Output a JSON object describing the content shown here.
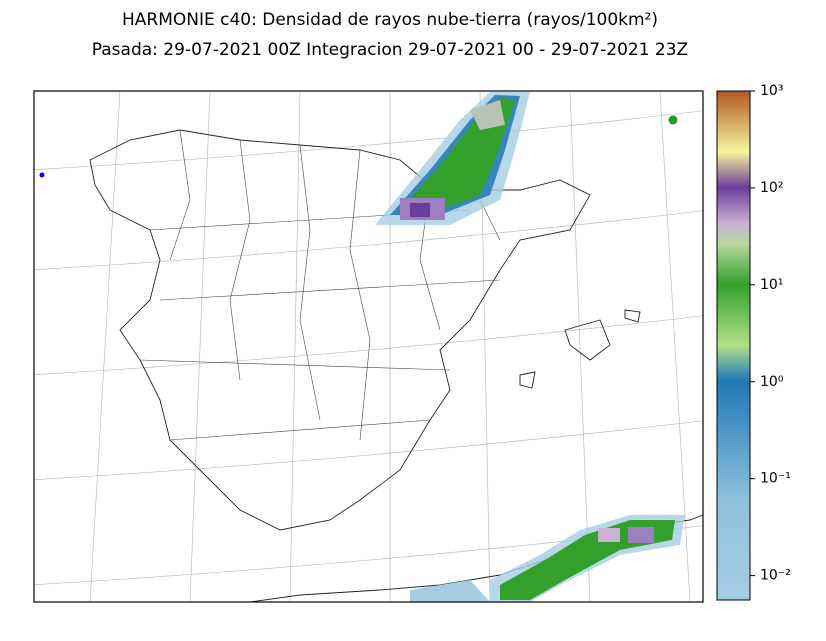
{
  "header": {
    "title": "HARMONIE c40: Densidad de rayos nube-tierra (rayos/100km²)",
    "subtitle": "Pasada: 29-07-2021 00Z Integracion 29-07-2021 00 - 29-07-2021 23Z"
  },
  "colorbar": {
    "scale": "log",
    "lim": [
      0.0056,
      1000
    ],
    "ticks": [
      {
        "value": 1000,
        "label": "10³"
      },
      {
        "value": 100,
        "label": "10²"
      },
      {
        "value": 10,
        "label": "10¹"
      },
      {
        "value": 1,
        "label": "10⁰"
      },
      {
        "value": 0.1,
        "label": "10⁻¹"
      },
      {
        "value": 0.01,
        "label": "10⁻²"
      }
    ]
  }
}
